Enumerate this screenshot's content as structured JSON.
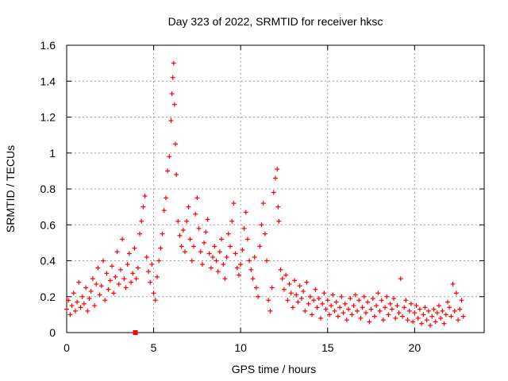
{
  "chart_data": {
    "type": "scatter",
    "title": "Day 323 of 2022, SRMTID for receiver hksc",
    "xlabel": "GPS time / hours",
    "ylabel": "SRMTID / TECUs",
    "xlim": [
      0,
      24
    ],
    "ylim": [
      0,
      1.6
    ],
    "x_ticks": [
      0,
      5,
      10,
      15,
      20
    ],
    "x_tick_labels": [
      "0",
      "5",
      "10",
      "15",
      "20"
    ],
    "y_ticks": [
      0,
      0.2,
      0.4,
      0.6,
      0.8,
      1.0,
      1.2,
      1.4,
      1.6
    ],
    "y_tick_labels": [
      "0",
      "0.2",
      "0.4",
      "0.6",
      "0.8",
      "1",
      "1.2",
      "1.4",
      "1.6"
    ],
    "grid": true,
    "marker": "plus",
    "color": "#ff0000",
    "series": [
      {
        "name": "hksc",
        "points": [
          [
            0.0,
            0.13
          ],
          [
            0.1,
            0.18
          ],
          [
            0.2,
            0.1
          ],
          [
            0.3,
            0.15
          ],
          [
            0.4,
            0.22
          ],
          [
            0.5,
            0.12
          ],
          [
            0.6,
            0.17
          ],
          [
            0.7,
            0.28
          ],
          [
            0.8,
            0.14
          ],
          [
            0.9,
            0.2
          ],
          [
            1.0,
            0.16
          ],
          [
            1.1,
            0.25
          ],
          [
            1.2,
            0.12
          ],
          [
            1.3,
            0.19
          ],
          [
            1.4,
            0.23
          ],
          [
            1.5,
            0.3
          ],
          [
            1.6,
            0.15
          ],
          [
            1.7,
            0.27
          ],
          [
            1.8,
            0.36
          ],
          [
            1.9,
            0.21
          ],
          [
            2.0,
            0.26
          ],
          [
            2.1,
            0.4
          ],
          [
            2.2,
            0.18
          ],
          [
            2.3,
            0.33
          ],
          [
            2.4,
            0.24
          ],
          [
            2.5,
            0.29
          ],
          [
            2.6,
            0.37
          ],
          [
            2.7,
            0.22
          ],
          [
            2.8,
            0.31
          ],
          [
            2.9,
            0.45
          ],
          [
            3.0,
            0.27
          ],
          [
            3.1,
            0.35
          ],
          [
            3.2,
            0.52
          ],
          [
            3.3,
            0.3
          ],
          [
            3.4,
            0.25
          ],
          [
            3.5,
            0.38
          ],
          [
            3.6,
            0.44
          ],
          [
            3.7,
            0.28
          ],
          [
            3.8,
            0.33
          ],
          [
            3.9,
            0.47
          ],
          [
            4.0,
            0.3
          ],
          [
            4.1,
            0.36
          ],
          [
            4.2,
            0.55
          ],
          [
            4.3,
            0.62
          ],
          [
            4.4,
            0.7
          ],
          [
            4.5,
            0.76
          ],
          [
            4.6,
            0.42
          ],
          [
            4.7,
            0.34
          ],
          [
            4.8,
            0.28
          ],
          [
            4.9,
            0.38
          ],
          [
            5.0,
            0.22
          ],
          [
            5.1,
            0.18
          ],
          [
            5.2,
            0.31
          ],
          [
            5.3,
            0.4
          ],
          [
            5.4,
            0.47
          ],
          [
            5.5,
            0.55
          ],
          [
            5.6,
            0.68
          ],
          [
            5.7,
            0.75
          ],
          [
            5.8,
            0.9
          ],
          [
            5.9,
            0.98
          ],
          [
            6.0,
            1.18
          ],
          [
            6.05,
            1.33
          ],
          [
            6.1,
            1.42
          ],
          [
            6.15,
            1.5
          ],
          [
            6.2,
            1.27
          ],
          [
            6.25,
            1.05
          ],
          [
            6.3,
            0.88
          ],
          [
            6.4,
            0.62
          ],
          [
            6.5,
            0.54
          ],
          [
            6.6,
            0.48
          ],
          [
            6.7,
            0.57
          ],
          [
            6.8,
            0.45
          ],
          [
            6.9,
            0.62
          ],
          [
            7.0,
            0.7
          ],
          [
            7.1,
            0.52
          ],
          [
            7.2,
            0.4
          ],
          [
            7.3,
            0.48
          ],
          [
            7.4,
            0.66
          ],
          [
            7.5,
            0.75
          ],
          [
            7.6,
            0.58
          ],
          [
            7.7,
            0.45
          ],
          [
            7.8,
            0.38
          ],
          [
            7.9,
            0.5
          ],
          [
            8.0,
            0.56
          ],
          [
            8.1,
            0.63
          ],
          [
            8.2,
            0.44
          ],
          [
            8.3,
            0.36
          ],
          [
            8.4,
            0.42
          ],
          [
            8.5,
            0.48
          ],
          [
            8.6,
            0.4
          ],
          [
            8.7,
            0.34
          ],
          [
            8.8,
            0.45
          ],
          [
            8.9,
            0.52
          ],
          [
            9.0,
            0.38
          ],
          [
            9.1,
            0.3
          ],
          [
            9.2,
            0.42
          ],
          [
            9.3,
            0.55
          ],
          [
            9.4,
            0.48
          ],
          [
            9.5,
            0.62
          ],
          [
            9.6,
            0.72
          ],
          [
            9.7,
            0.44
          ],
          [
            9.8,
            0.36
          ],
          [
            9.9,
            0.32
          ],
          [
            10.0,
            0.38
          ],
          [
            10.1,
            0.46
          ],
          [
            10.2,
            0.58
          ],
          [
            10.3,
            0.67
          ],
          [
            10.4,
            0.52
          ],
          [
            10.5,
            0.4
          ],
          [
            10.6,
            0.35
          ],
          [
            10.7,
            0.3
          ],
          [
            10.8,
            0.42
          ],
          [
            10.9,
            0.25
          ],
          [
            11.0,
            0.2
          ],
          [
            11.1,
            0.48
          ],
          [
            11.2,
            0.6
          ],
          [
            11.3,
            0.72
          ],
          [
            11.4,
            0.55
          ],
          [
            11.5,
            0.4
          ],
          [
            11.6,
            0.18
          ],
          [
            11.7,
            0.12
          ],
          [
            11.8,
            0.25
          ],
          [
            11.9,
            0.78
          ],
          [
            12.0,
            0.86
          ],
          [
            12.1,
            0.91
          ],
          [
            12.15,
            0.7
          ],
          [
            12.2,
            0.62
          ],
          [
            12.3,
            0.35
          ],
          [
            12.4,
            0.3
          ],
          [
            12.5,
            0.24
          ],
          [
            12.6,
            0.32
          ],
          [
            12.7,
            0.18
          ],
          [
            12.8,
            0.27
          ],
          [
            12.9,
            0.22
          ],
          [
            13.0,
            0.14
          ],
          [
            13.1,
            0.29
          ],
          [
            13.2,
            0.21
          ],
          [
            13.3,
            0.17
          ],
          [
            13.4,
            0.26
          ],
          [
            13.5,
            0.19
          ],
          [
            13.6,
            0.23
          ],
          [
            13.7,
            0.12
          ],
          [
            13.8,
            0.28
          ],
          [
            13.9,
            0.16
          ],
          [
            14.0,
            0.2
          ],
          [
            14.1,
            0.1
          ],
          [
            14.2,
            0.18
          ],
          [
            14.3,
            0.24
          ],
          [
            14.4,
            0.14
          ],
          [
            14.5,
            0.19
          ],
          [
            14.6,
            0.08
          ],
          [
            14.7,
            0.16
          ],
          [
            14.8,
            0.22
          ],
          [
            14.9,
            0.13
          ],
          [
            15.0,
            0.18
          ],
          [
            15.1,
            0.1
          ],
          [
            15.2,
            0.15
          ],
          [
            15.3,
            0.21
          ],
          [
            15.4,
            0.12
          ],
          [
            15.5,
            0.17
          ],
          [
            15.6,
            0.09
          ],
          [
            15.7,
            0.14
          ],
          [
            15.8,
            0.2
          ],
          [
            15.9,
            0.11
          ],
          [
            16.0,
            0.16
          ],
          [
            16.1,
            0.07
          ],
          [
            16.2,
            0.13
          ],
          [
            16.3,
            0.19
          ],
          [
            16.4,
            0.1
          ],
          [
            16.5,
            0.15
          ],
          [
            16.6,
            0.21
          ],
          [
            16.7,
            0.12
          ],
          [
            16.8,
            0.18
          ],
          [
            16.9,
            0.08
          ],
          [
            17.0,
            0.14
          ],
          [
            17.1,
            0.2
          ],
          [
            17.2,
            0.11
          ],
          [
            17.3,
            0.17
          ],
          [
            17.4,
            0.06
          ],
          [
            17.5,
            0.13
          ],
          [
            17.6,
            0.19
          ],
          [
            17.7,
            0.09
          ],
          [
            17.8,
            0.15
          ],
          [
            17.9,
            0.22
          ],
          [
            18.0,
            0.12
          ],
          [
            18.1,
            0.18
          ],
          [
            18.2,
            0.07
          ],
          [
            18.3,
            0.14
          ],
          [
            18.4,
            0.2
          ],
          [
            18.5,
            0.1
          ],
          [
            18.6,
            0.16
          ],
          [
            18.7,
            0.13
          ],
          [
            18.8,
            0.19
          ],
          [
            18.9,
            0.08
          ],
          [
            19.0,
            0.15
          ],
          [
            19.1,
            0.11
          ],
          [
            19.2,
            0.3
          ],
          [
            19.3,
            0.09
          ],
          [
            19.4,
            0.14
          ],
          [
            19.5,
            0.18
          ],
          [
            19.6,
            0.07
          ],
          [
            19.7,
            0.12
          ],
          [
            19.8,
            0.16
          ],
          [
            19.9,
            0.06
          ],
          [
            20.0,
            0.11
          ],
          [
            20.1,
            0.15
          ],
          [
            20.2,
            0.08
          ],
          [
            20.3,
            0.13
          ],
          [
            20.4,
            0.05
          ],
          [
            20.5,
            0.1
          ],
          [
            20.6,
            0.14
          ],
          [
            20.7,
            0.07
          ],
          [
            20.8,
            0.12
          ],
          [
            20.9,
            0.04
          ],
          [
            21.0,
            0.09
          ],
          [
            21.1,
            0.13
          ],
          [
            21.2,
            0.06
          ],
          [
            21.3,
            0.11
          ],
          [
            21.4,
            0.15
          ],
          [
            21.5,
            0.08
          ],
          [
            21.6,
            0.12
          ],
          [
            21.7,
            0.05
          ],
          [
            21.8,
            0.1
          ],
          [
            21.9,
            0.17
          ],
          [
            22.0,
            0.14
          ],
          [
            22.1,
            0.09
          ],
          [
            22.2,
            0.27
          ],
          [
            22.3,
            0.12
          ],
          [
            22.4,
            0.22
          ],
          [
            22.5,
            0.07
          ],
          [
            22.6,
            0.13
          ],
          [
            22.7,
            0.18
          ],
          [
            22.8,
            0.09
          ]
        ]
      }
    ],
    "outlier_markers": [
      {
        "x": 3.95,
        "y": 0.0
      }
    ]
  }
}
